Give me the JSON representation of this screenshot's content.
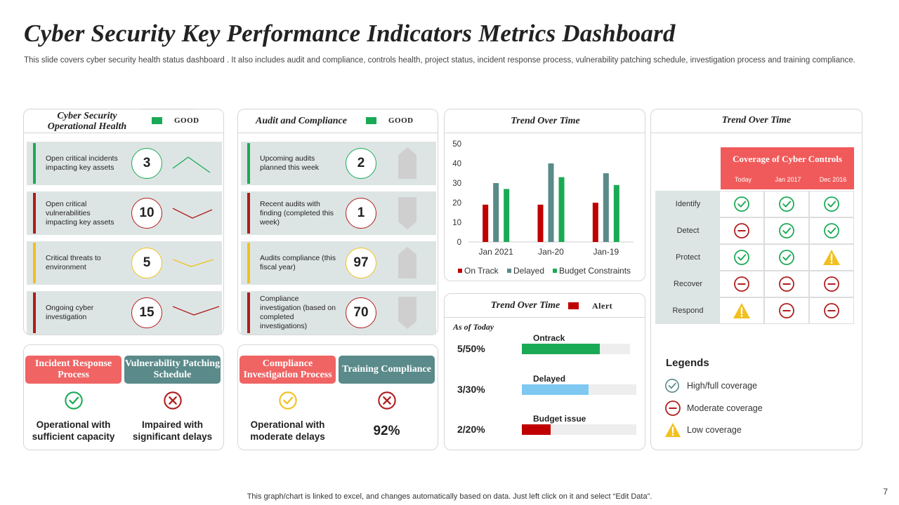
{
  "title": "Cyber Security Key Performance Indicators Metrics Dashboard",
  "subtitle": "This slide covers cyber security health status dashboard . It also includes audit and compliance, controls health, project status, incident response process, vulnerability patching schedule, investigation process and training compliance.",
  "footer": "This graph/chart is linked to excel,  and changes automatically based on data. Just left click on it and select “Edit Data”.",
  "page_number": "7",
  "colors": {
    "green": "#1aaa55",
    "red": "#b01c1c",
    "yellow": "#f2c01e",
    "teal": "#5a8a8a",
    "coral": "#f06464"
  },
  "operational": {
    "title": "Cyber Security Operational Health",
    "status": "GOOD",
    "rows": [
      {
        "label": "Open critical incidents impacting key assets",
        "value": "3",
        "color": "green"
      },
      {
        "label": "Open critical vulnerabilities impacting key assets",
        "value": "10",
        "color": "red"
      },
      {
        "label": "Critical threats to environment",
        "value": "5",
        "color": "yellow"
      },
      {
        "label": "Ongoing cyber investigation",
        "value": "15",
        "color": "red"
      }
    ]
  },
  "audit": {
    "title": "Audit and Compliance",
    "status": "GOOD",
    "rows": [
      {
        "label": "Upcoming audits planned this week",
        "value": "2",
        "color": "green"
      },
      {
        "label": "Recent audits with finding (completed this week)",
        "value": "1",
        "color": "red"
      },
      {
        "label": "Audits compliance (this fiscal year)",
        "value": "97",
        "color": "yellow"
      },
      {
        "label": "Compliance investigation (based on completed investigations)",
        "value": "70",
        "color": "red"
      }
    ]
  },
  "processes_left": [
    {
      "tag": "Incident Response Process",
      "status_text": "Operational with sufficient capacity",
      "icon": "check-circle-icon"
    },
    {
      "tag": "Vulnerability Patching Schedule",
      "status_text": "Impaired with significant delays",
      "icon": "x-circle-icon"
    }
  ],
  "processes_right": [
    {
      "tag": "Compliance Investigation Process",
      "status_text": "Operational with moderate delays",
      "icon": "check-circle-icon"
    },
    {
      "tag": "Training Compliance",
      "status_text": "92%",
      "icon": "x-circle-icon"
    }
  ],
  "chart_data": {
    "type": "bar",
    "title": "Trend Over Time",
    "categories": [
      "Jan 2021",
      "Jan-20",
      "Jan-19"
    ],
    "series": [
      {
        "name": "On Track",
        "values": [
          19,
          19,
          20
        ],
        "color": "#c00000"
      },
      {
        "name": "Delayed",
        "values": [
          30,
          40,
          35
        ],
        "color": "#5a8a8a"
      },
      {
        "name": "Budget Constraints",
        "values": [
          27,
          33,
          29
        ],
        "color": "#1aaa55"
      }
    ],
    "ylim": [
      0,
      50
    ],
    "yticks": [
      "0",
      "10",
      "20",
      "30",
      "40",
      "50"
    ],
    "xlabel": "",
    "ylabel": ""
  },
  "progress": {
    "title": "Trend Over Time",
    "alert_label": "Alert",
    "as_of": "As of Today",
    "items": [
      {
        "label": "Ontrack",
        "value": "5/50%",
        "fraction": 0.72,
        "color": "#1aaa55"
      },
      {
        "label": "Delayed",
        "value": "3/30%",
        "fraction": 0.58,
        "color": "#7ec8f2"
      },
      {
        "label": "Budget issue",
        "value": "2/20%",
        "fraction": 0.25,
        "color": "#c00000"
      }
    ]
  },
  "coverage": {
    "title": "Trend Over Time",
    "header": "Coverage of Cyber Controls",
    "columns": [
      "Today",
      "Jan 2017",
      "Dec 2016"
    ],
    "rows": [
      {
        "label": "Identify",
        "cells": [
          "high",
          "high",
          "high"
        ]
      },
      {
        "label": "Detect",
        "cells": [
          "moderate",
          "high",
          "high"
        ]
      },
      {
        "label": "Protect",
        "cells": [
          "high",
          "high",
          "low"
        ]
      },
      {
        "label": "Recover",
        "cells": [
          "moderate",
          "moderate",
          "moderate"
        ]
      },
      {
        "label": "Respond",
        "cells": [
          "low",
          "moderate",
          "moderate"
        ]
      }
    ],
    "legend_title": "Legends",
    "legend": [
      {
        "key": "high",
        "label": "High/full coverage"
      },
      {
        "key": "moderate",
        "label": "Moderate  coverage"
      },
      {
        "key": "low",
        "label": "Low coverage"
      }
    ]
  }
}
